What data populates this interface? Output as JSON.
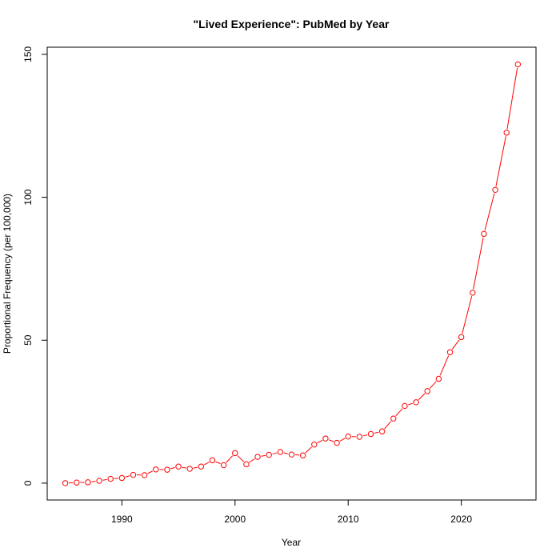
{
  "chart_data": {
    "type": "line",
    "title": "\"Lived Experience\": PubMed by Year",
    "xlabel": "Year",
    "ylabel": "Proportional Frequency (per 100,000)",
    "xlim": [
      1983.4,
      2026.6
    ],
    "ylim": [
      -5.9,
      152.5
    ],
    "x_ticks": [
      1990,
      2000,
      2010,
      2020
    ],
    "y_ticks": [
      0,
      50,
      100,
      150
    ],
    "grid": false,
    "legend": "none",
    "series_color": "#ff0000",
    "series": [
      {
        "x": [
          1985,
          1986,
          1987,
          1988,
          1989,
          1990,
          1991,
          1992,
          1993,
          1994,
          1995,
          1996,
          1997,
          1998,
          1999,
          2000,
          2001,
          2002,
          2003,
          2004,
          2005,
          2006,
          2007,
          2008,
          2009,
          2010,
          2011,
          2012,
          2013,
          2014,
          2015,
          2016,
          2017,
          2018,
          2019,
          2020,
          2021,
          2022,
          2023,
          2024,
          2025
        ],
        "y": [
          0.0,
          0.2,
          0.3,
          0.8,
          1.5,
          1.8,
          2.9,
          2.8,
          4.8,
          4.7,
          5.8,
          5.0,
          5.8,
          8.0,
          6.3,
          10.5,
          6.6,
          9.2,
          9.9,
          10.9,
          10.0,
          9.7,
          13.5,
          15.6,
          14.1,
          16.3,
          16.2,
          17.2,
          18.1,
          22.6,
          27.0,
          28.3,
          32.2,
          36.5,
          45.8,
          51.1,
          66.6,
          87.2,
          102.6,
          122.6,
          146.5
        ]
      }
    ]
  }
}
